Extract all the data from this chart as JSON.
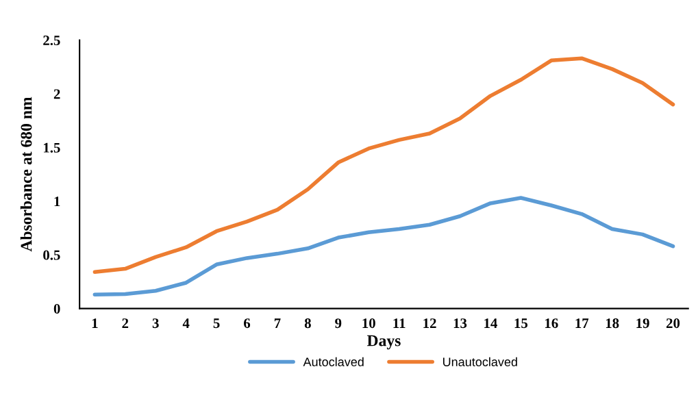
{
  "chart_data": {
    "type": "line",
    "xlabel": "Days",
    "ylabel": "Absorbance at 680 nm",
    "categories": [
      "1",
      "2",
      "3",
      "4",
      "5",
      "6",
      "7",
      "8",
      "9",
      "10",
      "11",
      "12",
      "13",
      "14",
      "15",
      "16",
      "17",
      "18",
      "19",
      "20"
    ],
    "series": [
      {
        "name": "Autoclaved",
        "color": "#5b9bd5",
        "values": [
          0.13,
          0.135,
          0.165,
          0.24,
          0.41,
          0.47,
          0.51,
          0.56,
          0.66,
          0.71,
          0.74,
          0.78,
          0.86,
          0.98,
          1.03,
          0.96,
          0.88,
          0.74,
          0.69,
          0.58
        ]
      },
      {
        "name": "Unautoclaved",
        "color": "#ed7d31",
        "values": [
          0.34,
          0.37,
          0.48,
          0.57,
          0.72,
          0.81,
          0.92,
          1.11,
          1.36,
          1.49,
          1.57,
          1.63,
          1.77,
          1.98,
          2.13,
          2.31,
          2.33,
          2.23,
          2.1,
          1.9
        ]
      }
    ],
    "ylim": [
      0,
      2.5
    ],
    "yticks": [
      0,
      0.5,
      1,
      1.5,
      2,
      2.5
    ],
    "grid": false,
    "legend": "bottom",
    "marker": "none",
    "line_style": "solid"
  }
}
